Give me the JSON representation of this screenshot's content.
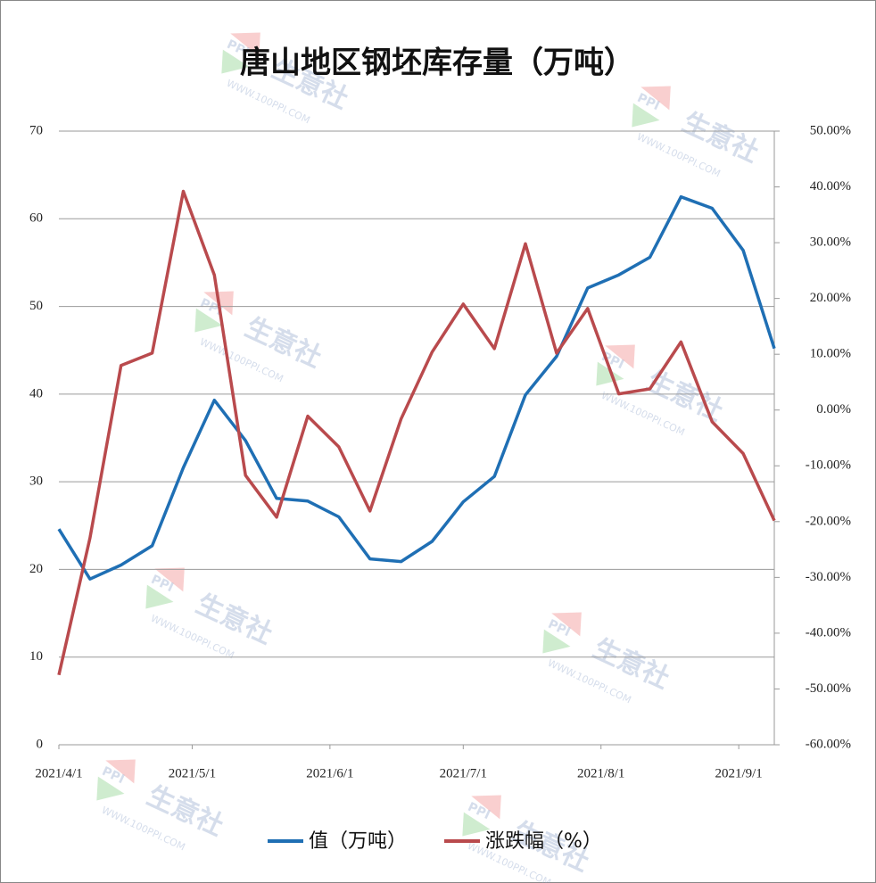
{
  "chart_data": {
    "type": "line",
    "title": "唐山地区钢坯库存量（万吨）",
    "x": [
      "2021/4/1",
      "2021/4/8",
      "2021/4/15",
      "2021/4/22",
      "2021/4/29",
      "2021/5/6",
      "2021/5/13",
      "2021/5/20",
      "2021/5/27",
      "2021/6/3",
      "2021/6/10",
      "2021/6/17",
      "2021/6/24",
      "2021/7/1",
      "2021/7/8",
      "2021/7/15",
      "2021/7/22",
      "2021/7/29",
      "2021/8/5",
      "2021/8/12",
      "2021/8/19",
      "2021/8/26",
      "2021/9/2",
      "2021/9/9"
    ],
    "xlim": [
      "2021/4/1",
      "2021/9/9"
    ],
    "xticks": [
      "2021/4/1",
      "2021/5/1",
      "2021/6/1",
      "2021/7/1",
      "2021/8/1",
      "2021/9/1"
    ],
    "ylim": [
      0,
      70
    ],
    "yticks": [
      0,
      10,
      20,
      30,
      40,
      50,
      60,
      70
    ],
    "y2lim": [
      -60,
      50
    ],
    "y2ticks": [
      {
        "value": -60,
        "label": "-60.00%"
      },
      {
        "value": -50,
        "label": "-50.00%"
      },
      {
        "value": -40,
        "label": "-40.00%"
      },
      {
        "value": -30,
        "label": "-30.00%"
      },
      {
        "value": -20,
        "label": "-20.00%"
      },
      {
        "value": -10,
        "label": "-10.00%"
      },
      {
        "value": 0,
        "label": "0.00%"
      },
      {
        "value": 10,
        "label": "10.00%"
      },
      {
        "value": 20,
        "label": "20.00%"
      },
      {
        "value": 30,
        "label": "30.00%"
      },
      {
        "value": 40,
        "label": "40.00%"
      },
      {
        "value": 50,
        "label": "50.00%"
      }
    ],
    "grid": true,
    "series": [
      {
        "name": "值（万吨）",
        "color": "#1f6fb4",
        "values": [
          24.6,
          18.9,
          20.5,
          22.7,
          31.6,
          39.3,
          34.7,
          28.1,
          27.8,
          26.0,
          21.2,
          20.9,
          23.2,
          27.7,
          30.6,
          39.9,
          44.3,
          52.1,
          53.6,
          55.6,
          62.5,
          61.2,
          56.4,
          45.2
        ]
      },
      {
        "name": "涨跌幅（%）",
        "color": "#b94a4d",
        "axis": "y2",
        "values": [
          -47.5,
          -22.9,
          8.0,
          10.2,
          39.2,
          24.2,
          -11.7,
          -19.2,
          -1.1,
          -6.6,
          -18.1,
          -1.6,
          10.4,
          19.0,
          11.0,
          29.8,
          10.2,
          18.2,
          2.9,
          3.8,
          12.2,
          -2.1,
          -7.8,
          -19.8
        ]
      }
    ],
    "watermark": {
      "brand": "生意社",
      "logo": "PPI",
      "site": "WWW.100PPI.COM"
    }
  }
}
